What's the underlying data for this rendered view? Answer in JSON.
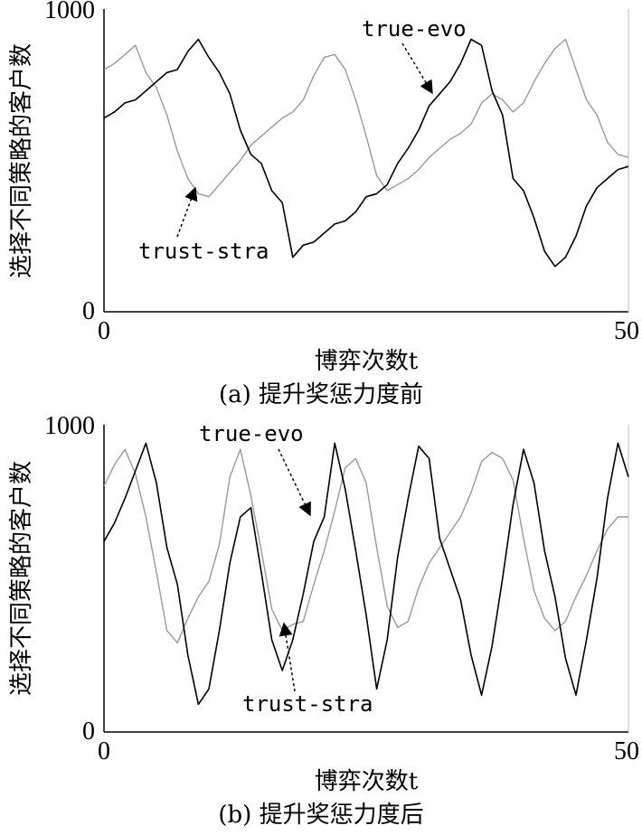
{
  "chart_data": [
    {
      "type": "line",
      "caption": "(a) 提升奖惩力度前",
      "xlabel": "博弈次数t",
      "ylabel": "选择不同策略的客户数",
      "xlim": [
        0,
        50
      ],
      "ylim": [
        0,
        1000
      ],
      "xticks": [
        "0",
        "50"
      ],
      "yticks": [
        "0",
        "1000"
      ],
      "annotations": [
        {
          "text": "true-evo",
          "series": "true-evo"
        },
        {
          "text": "trust-stra",
          "series": "trust-stra"
        }
      ],
      "series": [
        {
          "name": "true-evo",
          "color": "#000000",
          "x": [
            0,
            1,
            2,
            3,
            4,
            5,
            6,
            7,
            8,
            9,
            10,
            11,
            12,
            13,
            14,
            15,
            16,
            17,
            18,
            19,
            20,
            21,
            22,
            23,
            24,
            25,
            26,
            27,
            28,
            29,
            30,
            31,
            32,
            33,
            34,
            35,
            36,
            37,
            38,
            39,
            40,
            41,
            42,
            43,
            44,
            45,
            46,
            47,
            48,
            49,
            50
          ],
          "values": [
            640,
            660,
            690,
            700,
            730,
            760,
            790,
            800,
            860,
            900,
            840,
            790,
            720,
            600,
            520,
            490,
            400,
            360,
            180,
            220,
            230,
            260,
            290,
            300,
            330,
            380,
            390,
            420,
            490,
            540,
            600,
            680,
            720,
            760,
            820,
            900,
            880,
            730,
            650,
            440,
            400,
            310,
            200,
            150,
            180,
            250,
            350,
            410,
            440,
            470,
            480
          ]
        },
        {
          "name": "trust-stra",
          "color": "#999999",
          "x": [
            0,
            1,
            2,
            3,
            4,
            5,
            6,
            7,
            8,
            9,
            10,
            11,
            12,
            13,
            14,
            15,
            16,
            17,
            18,
            19,
            20,
            21,
            22,
            23,
            24,
            25,
            26,
            27,
            28,
            29,
            30,
            31,
            32,
            33,
            34,
            35,
            36,
            37,
            38,
            39,
            40,
            41,
            42,
            43,
            44,
            45,
            46,
            47,
            48,
            49,
            50
          ],
          "values": [
            800,
            820,
            850,
            880,
            790,
            740,
            650,
            530,
            440,
            390,
            380,
            420,
            460,
            500,
            550,
            580,
            610,
            640,
            660,
            700,
            780,
            840,
            850,
            800,
            700,
            580,
            450,
            400,
            420,
            440,
            470,
            510,
            540,
            570,
            590,
            620,
            690,
            720,
            700,
            660,
            690,
            760,
            820,
            870,
            900,
            800,
            700,
            650,
            560,
            520,
            510
          ]
        }
      ]
    },
    {
      "type": "line",
      "caption": "(b) 提升奖惩力度后",
      "xlabel": "博弈次数t",
      "ylabel": "选择不同策略的客户数",
      "xlim": [
        0,
        50
      ],
      "ylim": [
        0,
        1000
      ],
      "xticks": [
        "0",
        "50"
      ],
      "yticks": [
        "0",
        "1000"
      ],
      "annotations": [
        {
          "text": "true-evo",
          "series": "true-evo"
        },
        {
          "text": "trust-stra",
          "series": "trust-stra"
        }
      ],
      "series": [
        {
          "name": "true-evo",
          "color": "#000000",
          "x": [
            0,
            1,
            2,
            3,
            4,
            5,
            6,
            7,
            8,
            9,
            10,
            11,
            12,
            13,
            14,
            15,
            16,
            17,
            18,
            19,
            20,
            21,
            22,
            23,
            24,
            25,
            26,
            27,
            28,
            29,
            30,
            31,
            32,
            33,
            34,
            35,
            36,
            37,
            38,
            39,
            40,
            41,
            42,
            43,
            44,
            45,
            46,
            47,
            48,
            49,
            50
          ],
          "values": [
            620,
            680,
            760,
            850,
            940,
            810,
            600,
            480,
            250,
            90,
            140,
            330,
            550,
            700,
            730,
            520,
            300,
            200,
            300,
            450,
            620,
            700,
            940,
            790,
            590,
            380,
            140,
            300,
            570,
            760,
            930,
            890,
            630,
            530,
            430,
            250,
            120,
            280,
            500,
            740,
            920,
            810,
            590,
            440,
            240,
            120,
            300,
            500,
            760,
            940,
            830
          ]
        },
        {
          "name": "trust-stra",
          "color": "#999999",
          "x": [
            0,
            1,
            2,
            3,
            4,
            5,
            6,
            7,
            8,
            9,
            10,
            11,
            12,
            13,
            14,
            15,
            16,
            17,
            18,
            19,
            20,
            21,
            22,
            23,
            24,
            25,
            26,
            27,
            28,
            29,
            30,
            31,
            32,
            33,
            34,
            35,
            36,
            37,
            38,
            39,
            40,
            41,
            42,
            43,
            44,
            45,
            46,
            47,
            48,
            49,
            50
          ],
          "values": [
            800,
            870,
            920,
            840,
            700,
            520,
            330,
            290,
            370,
            440,
            490,
            610,
            830,
            920,
            770,
            590,
            400,
            330,
            350,
            360,
            480,
            590,
            720,
            860,
            890,
            810,
            600,
            410,
            340,
            360,
            470,
            550,
            600,
            650,
            700,
            780,
            880,
            910,
            890,
            820,
            630,
            460,
            370,
            330,
            360,
            440,
            510,
            590,
            660,
            700,
            700
          ]
        }
      ]
    }
  ]
}
